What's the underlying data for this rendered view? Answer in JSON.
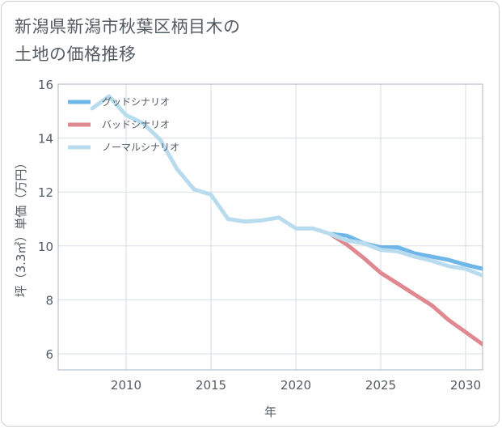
{
  "title_lines": [
    "新潟県新潟市秋葉区柄目木の",
    "土地の価格推移"
  ],
  "chart_data": {
    "type": "line",
    "xlabel": "年",
    "ylabel": "坪（3.3㎡）単価（万円）",
    "xlim": [
      2006,
      2031
    ],
    "ylim": [
      5.4,
      16
    ],
    "x_ticks": [
      2010,
      2015,
      2020,
      2025,
      2030
    ],
    "y_ticks": [
      6,
      8,
      10,
      12,
      14,
      16
    ],
    "grid": true,
    "legend_position": "top-left",
    "series": [
      {
        "name": "グッドシナリオ",
        "color": "#6fb6e8",
        "x": [
          2022,
          2023,
          2024,
          2025,
          2026,
          2027,
          2028,
          2029,
          2030,
          2031
        ],
        "values": [
          10.45,
          10.38,
          10.1,
          9.95,
          9.95,
          9.72,
          9.6,
          9.48,
          9.3,
          9.15
        ]
      },
      {
        "name": "バッドシナリオ",
        "color": "#e0888f",
        "x": [
          2022,
          2023,
          2024,
          2025,
          2026,
          2027,
          2028,
          2029,
          2030,
          2031
        ],
        "values": [
          10.45,
          10.05,
          9.55,
          9.0,
          8.6,
          8.2,
          7.8,
          7.25,
          6.8,
          6.35
        ]
      },
      {
        "name": "ノーマルシナリオ",
        "color": "#b8dcee",
        "x": [
          2008,
          2009,
          2010,
          2011,
          2012,
          2013,
          2014,
          2015,
          2016,
          2017,
          2018,
          2019,
          2020,
          2021,
          2022,
          2023,
          2024,
          2025,
          2026,
          2027,
          2028,
          2029,
          2030,
          2031
        ],
        "values": [
          15.1,
          15.55,
          14.85,
          14.55,
          13.95,
          12.85,
          12.1,
          11.9,
          11.0,
          10.9,
          10.95,
          11.05,
          10.65,
          10.65,
          10.45,
          10.2,
          10.1,
          9.85,
          9.8,
          9.6,
          9.45,
          9.25,
          9.15,
          8.9
        ]
      }
    ]
  }
}
